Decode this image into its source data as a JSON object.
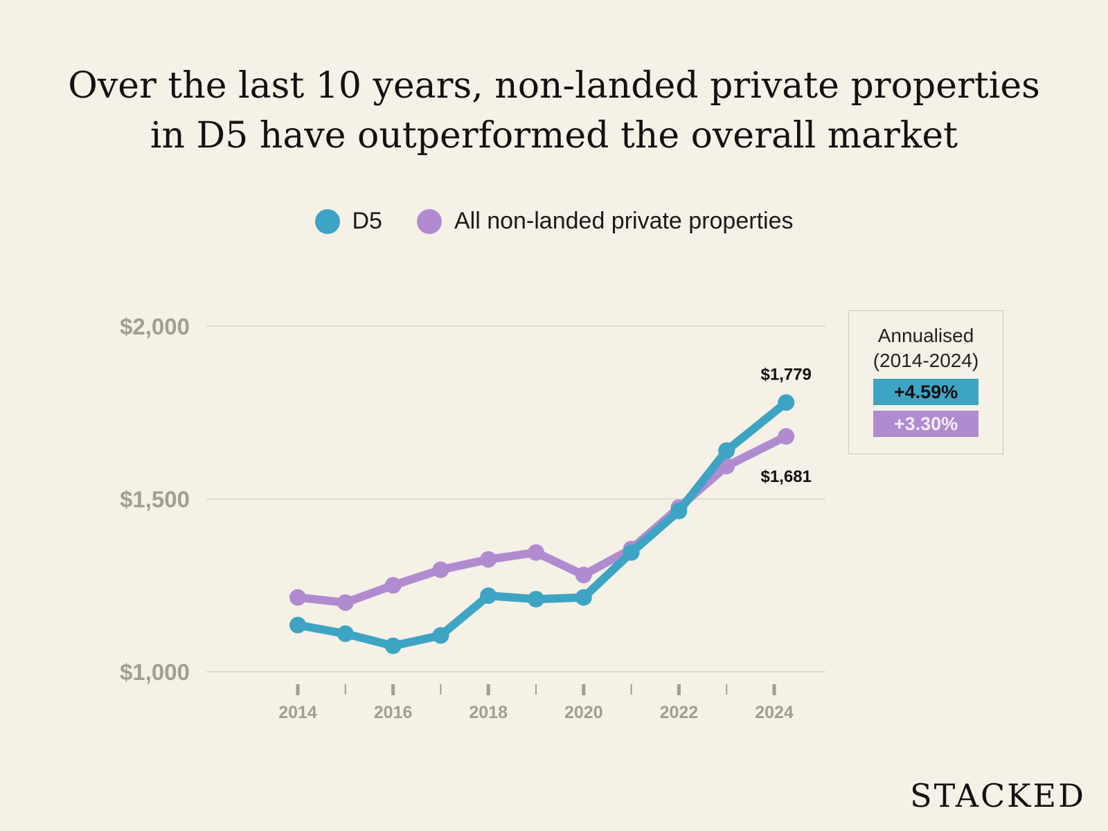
{
  "title_lines": [
    "Over the last 10 years, non-landed private properties",
    "in D5 have outperformed the overall market"
  ],
  "brand": "STACKED",
  "colors": {
    "d5": "#3ea4c4",
    "all": "#b18bd0",
    "background": "#f5f1e6",
    "tick": "#a39e91",
    "grid": "#e1dccf"
  },
  "annualised_box": {
    "title_lines": [
      "Annualised",
      "(2014-2024)"
    ],
    "d5_rate": "+4.59%",
    "all_rate": "+3.30%"
  },
  "chart_data": {
    "type": "line",
    "title": "Over the last 10 years, non-landed private properties in D5 have outperformed the overall market",
    "xlabel": "",
    "ylabel": "",
    "x": [
      2014,
      2015,
      2016,
      2017,
      2018,
      2019,
      2020,
      2021,
      2022,
      2023,
      2024
    ],
    "x_ticks": [
      2014,
      2015,
      2016,
      2017,
      2018,
      2019,
      2020,
      2021,
      2022,
      2023,
      2024
    ],
    "x_tick_labels": [
      "2014",
      "",
      "2016",
      "",
      "2018",
      "",
      "2020",
      "",
      "2022",
      "",
      "2024"
    ],
    "y_ticks": [
      1000,
      1500,
      2000
    ],
    "y_tick_labels": [
      "$1,000",
      "$1,500",
      "$2,000"
    ],
    "ylim": [
      1000,
      2000
    ],
    "grid": true,
    "legend_position": "top-center",
    "series": [
      {
        "name": "D5",
        "x": [
          2014,
          2015,
          2016,
          2017,
          2018,
          2019,
          2020,
          2021,
          2022,
          2023,
          2024.25
        ],
        "values": [
          1135,
          1110,
          1075,
          1105,
          1220,
          1210,
          1215,
          1345,
          1465,
          1640,
          1779
        ],
        "end_label": "$1,779"
      },
      {
        "name": "All non-landed private properties",
        "x": [
          2014,
          2015,
          2016,
          2017,
          2018,
          2019,
          2020,
          2021,
          2022,
          2023,
          2024.25
        ],
        "values": [
          1215,
          1200,
          1250,
          1295,
          1325,
          1345,
          1280,
          1355,
          1475,
          1595,
          1681
        ],
        "end_label": "$1,681"
      }
    ]
  }
}
